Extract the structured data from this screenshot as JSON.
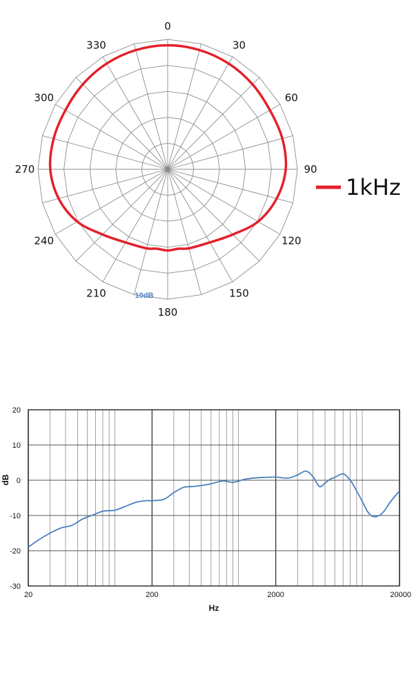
{
  "chart_data": [
    {
      "type": "polar",
      "angle_labels": [
        "0",
        "30",
        "60",
        "90",
        "120",
        "150",
        "180",
        "210",
        "240",
        "270",
        "300",
        "330"
      ],
      "scale_label": "10dB",
      "legend": [
        {
          "label": "1kHz",
          "color": "#e3202a"
        }
      ],
      "series": [
        {
          "name": "1kHz",
          "color": "#e3202a",
          "angle_deg": [
            0,
            15,
            30,
            45,
            60,
            75,
            90,
            105,
            120,
            135,
            150,
            165,
            172,
            180,
            188,
            195,
            210,
            225,
            240,
            255,
            270,
            285,
            300,
            315,
            330,
            345
          ],
          "radius_frac": [
            0.955,
            0.95,
            0.94,
            0.925,
            0.91,
            0.915,
            0.91,
            0.87,
            0.805,
            0.71,
            0.65,
            0.63,
            0.617,
            0.625,
            0.617,
            0.63,
            0.65,
            0.71,
            0.805,
            0.87,
            0.905,
            0.91,
            0.91,
            0.925,
            0.94,
            0.95
          ]
        }
      ]
    },
    {
      "type": "line",
      "xscale": "log",
      "xlim": [
        20,
        20000
      ],
      "ylim": [
        -30,
        20
      ],
      "xticks": [
        "20",
        "200",
        "2000",
        "20000"
      ],
      "yticks": [
        "20",
        "10",
        "0",
        "-10",
        "-20",
        "-30"
      ],
      "xlabel": "Hz",
      "ylabel": "dB",
      "series": [
        {
          "color": "#4a7fc1",
          "x": [
            20,
            24,
            30,
            37,
            45,
            55,
            65,
            80,
            100,
            120,
            150,
            180,
            200,
            250,
            300,
            360,
            420,
            500,
            600,
            750,
            900,
            1100,
            1300,
            1600,
            2000,
            2500,
            3000,
            3500,
            4000,
            4500,
            5000,
            5500,
            6000,
            7000,
            8000,
            9000,
            10000,
            11000,
            12000,
            13000,
            14000,
            15000,
            17000,
            20000
          ],
          "y": [
            -19,
            -17,
            -15,
            -13.5,
            -12.8,
            -11,
            -10,
            -8.8,
            -8.5,
            -7.5,
            -6.2,
            -5.8,
            -5.8,
            -5.4,
            -3.5,
            -2,
            -1.8,
            -1.5,
            -1,
            -0.2,
            -0.6,
            0.2,
            0.6,
            0.8,
            0.9,
            0.6,
            1.5,
            2.6,
            1,
            -1.8,
            -0.8,
            0.3,
            0.8,
            1.8,
            0,
            -3,
            -6,
            -8.8,
            -10.2,
            -10.3,
            -9.8,
            -8.8,
            -6,
            -3
          ]
        }
      ]
    }
  ]
}
